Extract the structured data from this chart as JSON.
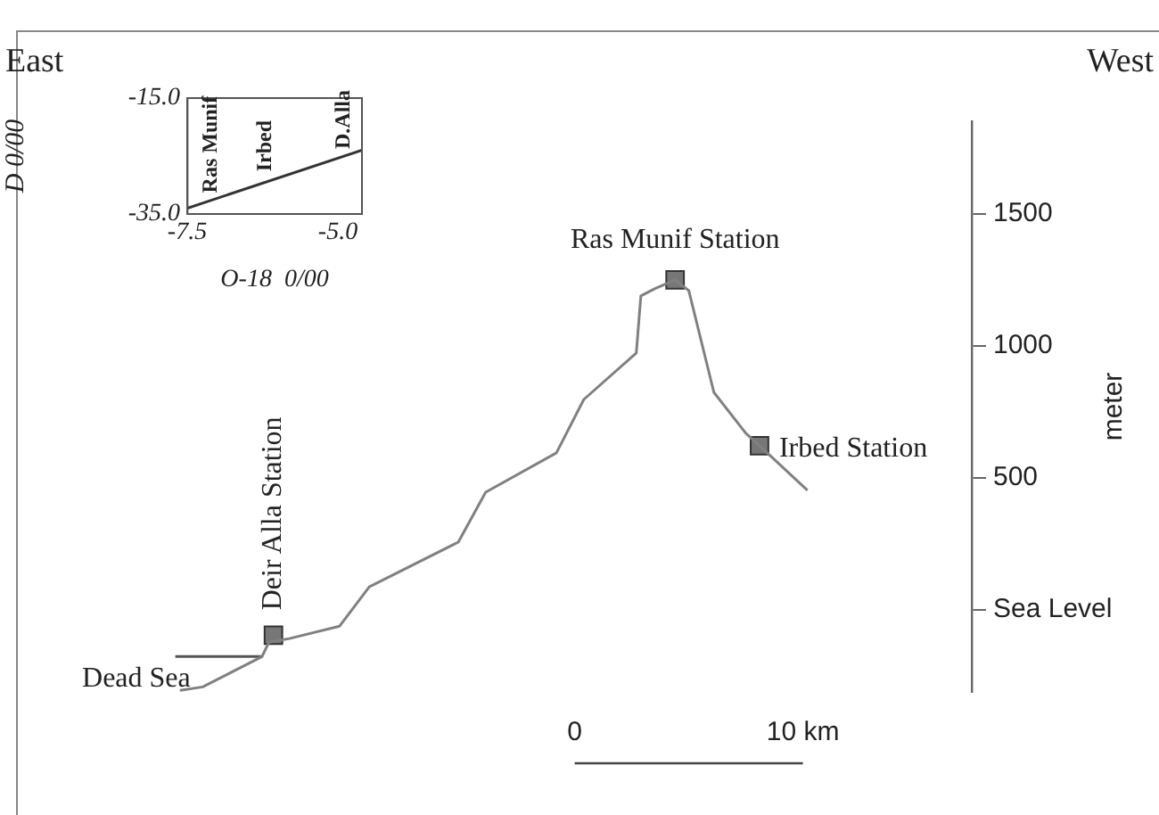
{
  "chart_data": [
    {
      "type": "line",
      "series": [
        {
          "color": "#808080",
          "marker": "none",
          "x": [
            -17.3,
            -16.3,
            -13.7,
            -13.4,
            -12.5,
            -10.3,
            -9.0,
            -5.1,
            -3.9,
            -0.8,
            0.4,
            2.7,
            2.9,
            3.5,
            4.4,
            5.0,
            6.1,
            7.5,
            8.1,
            10.2
          ],
          "values": [
            -304,
            -291,
            -176,
            -122,
            -108,
            -61,
            88,
            257,
            446,
            595,
            797,
            973,
            1189,
            1216,
            1250,
            1209,
            824,
            669,
            622,
            453
          ]
        },
        {
          "color": "#555555",
          "marker": "none",
          "x": [
            -17.5,
            -13.7
          ],
          "values": [
            -176,
            -176
          ]
        },
        {
          "type": "scatter",
          "color": "#777777",
          "marker": "square",
          "x": [
            -13.2,
            4.4,
            8.1
          ],
          "values": [
            -95,
            1250,
            622
          ]
        }
      ],
      "xlim": [
        -24.4,
        17.4
      ],
      "xticks": [
        {
          "value": 0,
          "label": "0"
        },
        {
          "value": 10,
          "label": "10 km"
        }
      ],
      "ylim": [
        -310,
        1850
      ],
      "yticks": [
        {
          "value": 0,
          "label": "Sea Level"
        },
        500,
        1000,
        1500
      ],
      "ylabel": "meter",
      "annotations": [
        "East",
        "West",
        {
          "text": "Deir Alla Station",
          "x": -13.2,
          "y": -95
        },
        {
          "text": "Ras Munif Station",
          "x": 4.4,
          "y": 1250
        },
        {
          "text": "Irbed Station",
          "x": 8.1,
          "y": 622
        },
        {
          "text": "Dead Sea",
          "x": -17.3,
          "y": -304
        }
      ]
    },
    {
      "type": "line",
      "series": [
        {
          "color": "#333333",
          "marker": "none",
          "x": [
            -7.5,
            -4.6
          ],
          "values": [
            -34,
            -24
          ]
        }
      ],
      "xlim": [
        -7.5,
        -4.6
      ],
      "xticks": [
        {
          "value": -7.5,
          "label": "-7.5"
        },
        {
          "value": -5,
          "label": "-5.0"
        }
      ],
      "ylim": [
        -35,
        -15
      ],
      "yticks": [
        {
          "value": -15,
          "label": "-15.0"
        },
        {
          "value": -35,
          "label": "-35.0"
        }
      ],
      "xlabel": "O-18  0/00",
      "ylabel": "D 0/00",
      "annotations": [
        {
          "text": "Ras Munif",
          "x": -7.1,
          "y": -32.6
        },
        {
          "text": "Irbed",
          "x": -6.2,
          "y": -29.5
        },
        {
          "text": "D.Alla",
          "x": -4.9,
          "y": -25
        }
      ]
    }
  ]
}
